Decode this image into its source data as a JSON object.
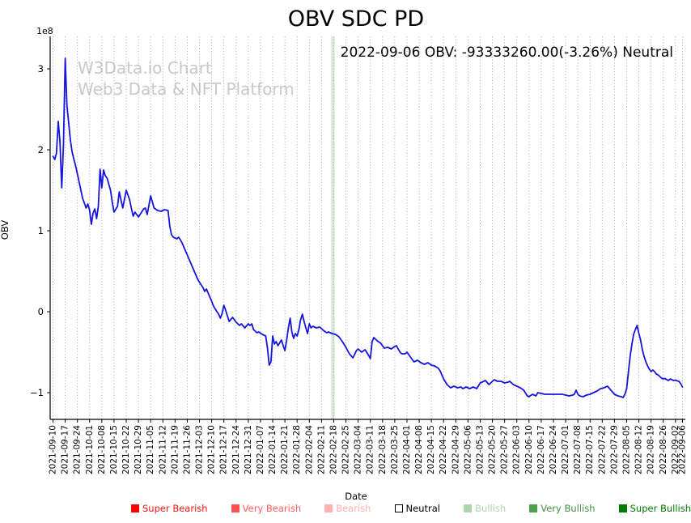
{
  "figure": {
    "title": "OBV SDC PD",
    "annotation": "2022-09-06 OBV: -93333260.00(-3.26%) Neutral",
    "watermark_line1": "W3Data.io Chart",
    "watermark_line2": "Web3 Data & NFT Platform",
    "offset_text": "1e8",
    "x_axis_label": "Date",
    "y_axis_label": "OBV"
  },
  "legend": {
    "items": [
      {
        "label": "Super Bearish",
        "color": "#ff0000",
        "text_color": "#ff1414",
        "border": "#ff0000"
      },
      {
        "label": "Very Bearish",
        "color": "#ff5252",
        "text_color": "#ff5c5c",
        "border": "#ff5252"
      },
      {
        "label": "Bearish",
        "color": "#ffb0b0",
        "text_color": "#ffb0b0",
        "border": "#ffb0b0"
      },
      {
        "label": "Neutral",
        "color": "#ffffff",
        "text_color": "#000000",
        "border": "#000000"
      },
      {
        "label": "Bullish",
        "color": "#aed6ae",
        "text_color": "#aed6ae",
        "border": "#aed6ae"
      },
      {
        "label": "Very Bullish",
        "color": "#4da04d",
        "text_color": "#449244",
        "border": "#4da04d"
      },
      {
        "label": "Super Bullish",
        "color": "#007a00",
        "text_color": "#007a00",
        "border": "#007a00"
      }
    ]
  },
  "chart_data": {
    "type": "line",
    "title": "OBV SDC PD",
    "xlabel": "Date",
    "ylabel": "OBV",
    "y_unit": "1e8",
    "offset_text": "1e8",
    "y_tick_labels": [
      "3",
      "2",
      "1",
      "0",
      "−1"
    ],
    "y_tick_values": [
      3,
      2,
      1,
      0,
      -1
    ],
    "ylim": [
      -1.33,
      3.4
    ],
    "grid": "vertical-dotted",
    "legend_position": "bottom",
    "line_color": "#1515dd",
    "x_start_date": "2021-09-10",
    "x_end_date": "2022-09-06",
    "x_tick_labels": [
      "2021-09-10",
      "2021-09-17",
      "2021-09-24",
      "2021-10-01",
      "2021-10-08",
      "2021-10-15",
      "2021-10-22",
      "2021-10-29",
      "2021-11-05",
      "2021-11-12",
      "2021-11-19",
      "2021-11-26",
      "2021-12-03",
      "2021-12-10",
      "2021-12-17",
      "2021-12-24",
      "2021-12-31",
      "2022-01-07",
      "2022-01-14",
      "2022-01-21",
      "2022-01-28",
      "2022-02-04",
      "2022-02-11",
      "2022-02-18",
      "2022-02-25",
      "2022-03-04",
      "2022-03-11",
      "2022-03-18",
      "2022-03-25",
      "2022-04-01",
      "2022-04-08",
      "2022-04-15",
      "2022-04-22",
      "2022-04-29",
      "2022-05-06",
      "2022-05-13",
      "2022-05-20",
      "2022-05-27",
      "2022-06-03",
      "2022-06-10",
      "2022-06-17",
      "2022-06-24",
      "2022-07-01",
      "2022-07-08",
      "2022-07-15",
      "2022-07-22",
      "2022-07-29",
      "2022-08-05",
      "2022-08-12",
      "2022-08-19",
      "2022-08-26",
      "2022-09-02",
      "2022-09-06"
    ],
    "x_tick_day_offsets": [
      0,
      7,
      14,
      21,
      28,
      35,
      42,
      49,
      56,
      63,
      70,
      77,
      84,
      91,
      98,
      105,
      112,
      119,
      126,
      133,
      140,
      147,
      154,
      161,
      168,
      175,
      182,
      189,
      196,
      203,
      210,
      217,
      224,
      231,
      238,
      245,
      252,
      259,
      266,
      273,
      280,
      287,
      294,
      301,
      308,
      315,
      322,
      329,
      336,
      343,
      350,
      357,
      361
    ],
    "highlight_band": {
      "signal": "Bullish",
      "day_start": 159.5,
      "day_end": 161.5,
      "color": "#d9ead9"
    },
    "last_point": {
      "date": "2022-09-06",
      "obv": -93333260.0,
      "change_pct": -3.26,
      "signal": "Neutral"
    },
    "series": [
      {
        "name": "OBV",
        "unit": "1e8",
        "points": [
          [
            0,
            1.92
          ],
          [
            1,
            1.88
          ],
          [
            2,
            1.96
          ],
          [
            3,
            2.35
          ],
          [
            4,
            2.1
          ],
          [
            5,
            1.53
          ],
          [
            6,
            2.05
          ],
          [
            7,
            3.13
          ],
          [
            8,
            2.55
          ],
          [
            9,
            2.33
          ],
          [
            10,
            2.12
          ],
          [
            11,
            1.97
          ],
          [
            12,
            1.88
          ],
          [
            13,
            1.8
          ],
          [
            14,
            1.7
          ],
          [
            15,
            1.6
          ],
          [
            16,
            1.5
          ],
          [
            17,
            1.4
          ],
          [
            18,
            1.34
          ],
          [
            19,
            1.28
          ],
          [
            20,
            1.33
          ],
          [
            21,
            1.25
          ],
          [
            22,
            1.08
          ],
          [
            23,
            1.22
          ],
          [
            24,
            1.27
          ],
          [
            25,
            1.15
          ],
          [
            26,
            1.3
          ],
          [
            27,
            1.76
          ],
          [
            28,
            1.53
          ],
          [
            29,
            1.75
          ],
          [
            30,
            1.68
          ],
          [
            31,
            1.65
          ],
          [
            33,
            1.5
          ],
          [
            34,
            1.35
          ],
          [
            35,
            1.23
          ],
          [
            37,
            1.3
          ],
          [
            38,
            1.48
          ],
          [
            40,
            1.28
          ],
          [
            42,
            1.5
          ],
          [
            44,
            1.38
          ],
          [
            45,
            1.27
          ],
          [
            46,
            1.18
          ],
          [
            47,
            1.23
          ],
          [
            49,
            1.17
          ],
          [
            52,
            1.27
          ],
          [
            53,
            1.28
          ],
          [
            54,
            1.2
          ],
          [
            56,
            1.43
          ],
          [
            58,
            1.28
          ],
          [
            60,
            1.25
          ],
          [
            62,
            1.24
          ],
          [
            64,
            1.26
          ],
          [
            66,
            1.25
          ],
          [
            67,
            1.05
          ],
          [
            68,
            0.95
          ],
          [
            69,
            0.92
          ],
          [
            71,
            0.9
          ],
          [
            72,
            0.92
          ],
          [
            73,
            0.89
          ],
          [
            74,
            0.85
          ],
          [
            76,
            0.75
          ],
          [
            78,
            0.65
          ],
          [
            80,
            0.55
          ],
          [
            82,
            0.45
          ],
          [
            83,
            0.4
          ],
          [
            85,
            0.33
          ],
          [
            86,
            0.3
          ],
          [
            87,
            0.25
          ],
          [
            88,
            0.28
          ],
          [
            90,
            0.18
          ],
          [
            91,
            0.13
          ],
          [
            92,
            0.07
          ],
          [
            94,
            0
          ],
          [
            95,
            -0.03
          ],
          [
            96,
            -0.08
          ],
          [
            97,
            -0.02
          ],
          [
            98,
            0.08
          ],
          [
            99,
            0.02
          ],
          [
            100,
            -0.05
          ],
          [
            101,
            -0.12
          ],
          [
            103,
            -0.07
          ],
          [
            105,
            -0.13
          ],
          [
            107,
            -0.17
          ],
          [
            108,
            -0.15
          ],
          [
            110,
            -0.2
          ],
          [
            112,
            -0.15
          ],
          [
            113,
            -0.17
          ],
          [
            114,
            -0.15
          ],
          [
            115,
            -0.22
          ],
          [
            117,
            -0.26
          ],
          [
            118,
            -0.25
          ],
          [
            120,
            -0.28
          ],
          [
            122,
            -0.3
          ],
          [
            123,
            -0.45
          ],
          [
            124,
            -0.66
          ],
          [
            125,
            -0.62
          ],
          [
            126,
            -0.3
          ],
          [
            127,
            -0.4
          ],
          [
            128,
            -0.37
          ],
          [
            129,
            -0.42
          ],
          [
            131,
            -0.35
          ],
          [
            132,
            -0.42
          ],
          [
            133,
            -0.48
          ],
          [
            134,
            -0.35
          ],
          [
            135,
            -0.2
          ],
          [
            136,
            -0.08
          ],
          [
            137,
            -0.25
          ],
          [
            138,
            -0.33
          ],
          [
            139,
            -0.27
          ],
          [
            140,
            -0.3
          ],
          [
            141,
            -0.22
          ],
          [
            142,
            -0.1
          ],
          [
            143,
            -0.03
          ],
          [
            144,
            -0.12
          ],
          [
            145,
            -0.2
          ],
          [
            146,
            -0.27
          ],
          [
            147,
            -0.15
          ],
          [
            148,
            -0.2
          ],
          [
            149,
            -0.18
          ],
          [
            151,
            -0.2
          ],
          [
            153,
            -0.19
          ],
          [
            155,
            -0.23
          ],
          [
            157,
            -0.26
          ],
          [
            158,
            -0.25
          ],
          [
            160,
            -0.27
          ],
          [
            162,
            -0.28
          ],
          [
            164,
            -0.31
          ],
          [
            166,
            -0.37
          ],
          [
            168,
            -0.44
          ],
          [
            170,
            -0.52
          ],
          [
            172,
            -0.57
          ],
          [
            174,
            -0.48
          ],
          [
            175,
            -0.46
          ],
          [
            177,
            -0.5
          ],
          [
            179,
            -0.47
          ],
          [
            181,
            -0.54
          ],
          [
            182,
            -0.58
          ],
          [
            183,
            -0.37
          ],
          [
            184,
            -0.32
          ],
          [
            186,
            -0.36
          ],
          [
            188,
            -0.39
          ],
          [
            190,
            -0.45
          ],
          [
            192,
            -0.44
          ],
          [
            194,
            -0.46
          ],
          [
            196,
            -0.43
          ],
          [
            197,
            -0.42
          ],
          [
            199,
            -0.5
          ],
          [
            200,
            -0.52
          ],
          [
            202,
            -0.52
          ],
          [
            203,
            -0.5
          ],
          [
            205,
            -0.56
          ],
          [
            207,
            -0.62
          ],
          [
            209,
            -0.6
          ],
          [
            211,
            -0.63
          ],
          [
            213,
            -0.65
          ],
          [
            215,
            -0.63
          ],
          [
            217,
            -0.66
          ],
          [
            219,
            -0.67
          ],
          [
            221,
            -0.7
          ],
          [
            222,
            -0.73
          ],
          [
            224,
            -0.83
          ],
          [
            226,
            -0.9
          ],
          [
            228,
            -0.94
          ],
          [
            230,
            -0.92
          ],
          [
            232,
            -0.94
          ],
          [
            234,
            -0.93
          ],
          [
            235,
            -0.95
          ],
          [
            237,
            -0.93
          ],
          [
            239,
            -0.95
          ],
          [
            241,
            -0.93
          ],
          [
            243,
            -0.95
          ],
          [
            245,
            -0.88
          ],
          [
            247,
            -0.86
          ],
          [
            248,
            -0.85
          ],
          [
            250,
            -0.9
          ],
          [
            252,
            -0.86
          ],
          [
            253,
            -0.84
          ],
          [
            255,
            -0.86
          ],
          [
            257,
            -0.86
          ],
          [
            259,
            -0.88
          ],
          [
            261,
            -0.87
          ],
          [
            262,
            -0.86
          ],
          [
            264,
            -0.9
          ],
          [
            266,
            -0.92
          ],
          [
            268,
            -0.94
          ],
          [
            270,
            -0.97
          ],
          [
            272,
            -1.04
          ],
          [
            273,
            -1.05
          ],
          [
            275,
            -1.02
          ],
          [
            277,
            -1.04
          ],
          [
            278,
            -1
          ],
          [
            280,
            -1.01
          ],
          [
            282,
            -1.02
          ],
          [
            284,
            -1.02
          ],
          [
            286,
            -1.02
          ],
          [
            288,
            -1.02
          ],
          [
            290,
            -1.02
          ],
          [
            292,
            -1.02
          ],
          [
            294,
            -1.03
          ],
          [
            296,
            -1.04
          ],
          [
            298,
            -1.03
          ],
          [
            299,
            -1.02
          ],
          [
            300,
            -0.97
          ],
          [
            301,
            -1.02
          ],
          [
            302,
            -1.04
          ],
          [
            304,
            -1.05
          ],
          [
            306,
            -1.03
          ],
          [
            308,
            -1.02
          ],
          [
            310,
            -1
          ],
          [
            312,
            -0.98
          ],
          [
            314,
            -0.95
          ],
          [
            316,
            -0.94
          ],
          [
            317,
            -0.93
          ],
          [
            318,
            -0.92
          ],
          [
            320,
            -0.97
          ],
          [
            322,
            -1.02
          ],
          [
            324,
            -1.04
          ],
          [
            326,
            -1.05
          ],
          [
            327,
            -1.06
          ],
          [
            328,
            -1.02
          ],
          [
            329,
            -0.95
          ],
          [
            330,
            -0.75
          ],
          [
            331,
            -0.55
          ],
          [
            332,
            -0.4
          ],
          [
            333,
            -0.28
          ],
          [
            334,
            -0.22
          ],
          [
            335,
            -0.17
          ],
          [
            336,
            -0.27
          ],
          [
            337,
            -0.35
          ],
          [
            338,
            -0.47
          ],
          [
            339,
            -0.55
          ],
          [
            340,
            -0.62
          ],
          [
            341,
            -0.67
          ],
          [
            342,
            -0.71
          ],
          [
            343,
            -0.74
          ],
          [
            344,
            -0.72
          ],
          [
            345,
            -0.74
          ],
          [
            346,
            -0.77
          ],
          [
            347,
            -0.78
          ],
          [
            348,
            -0.8
          ],
          [
            349,
            -0.82
          ],
          [
            350,
            -0.83
          ],
          [
            351,
            -0.825
          ],
          [
            352,
            -0.84
          ],
          [
            353,
            -0.85
          ],
          [
            354,
            -0.83
          ],
          [
            355,
            -0.84
          ],
          [
            356,
            -0.85
          ],
          [
            357,
            -0.845
          ],
          [
            358,
            -0.855
          ],
          [
            359,
            -0.86
          ],
          [
            360,
            -0.89
          ],
          [
            361,
            -0.93
          ]
        ]
      }
    ]
  }
}
